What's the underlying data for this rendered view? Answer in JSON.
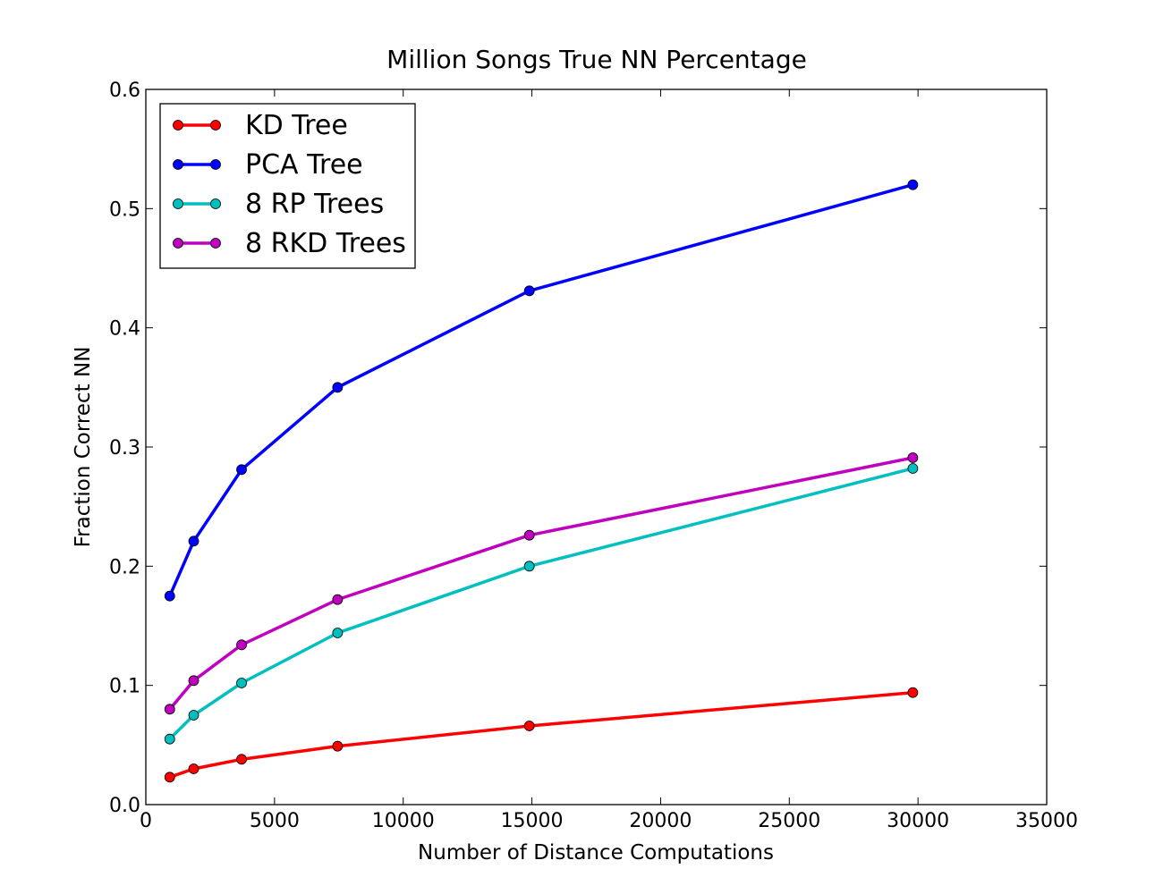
{
  "chart_data": {
    "type": "line",
    "title": "Million Songs True NN Percentage",
    "xlabel": "Number of Distance Computations",
    "ylabel": "Fraction Correct NN",
    "xlim": [
      0,
      35000
    ],
    "ylim": [
      0,
      0.6
    ],
    "xticks": [
      0,
      5000,
      10000,
      15000,
      20000,
      25000,
      30000,
      35000
    ],
    "xtick_labels": [
      "0",
      "5000",
      "10000",
      "15000",
      "20000",
      "25000",
      "30000",
      "35000"
    ],
    "yticks": [
      0.0,
      0.1,
      0.2,
      0.3,
      0.4,
      0.5,
      0.6
    ],
    "ytick_labels": [
      "0.0",
      "0.1",
      "0.2",
      "0.3",
      "0.4",
      "0.5",
      "0.6"
    ],
    "grid": false,
    "legend_position": "top-left",
    "x": [
      930,
      1860,
      3720,
      7450,
      14900,
      29800
    ],
    "series": [
      {
        "name": "KD Tree",
        "color": "#ff0000",
        "values": [
          0.023,
          0.03,
          0.038,
          0.049,
          0.066,
          0.094
        ]
      },
      {
        "name": "PCA Tree",
        "color": "#0000ff",
        "values": [
          0.175,
          0.221,
          0.281,
          0.35,
          0.431,
          0.52
        ]
      },
      {
        "name": "8 RP Trees",
        "color": "#00bfbf",
        "values": [
          0.055,
          0.075,
          0.102,
          0.144,
          0.2,
          0.282
        ]
      },
      {
        "name": "8 RKD Trees",
        "color": "#bf00bf",
        "values": [
          0.08,
          0.104,
          0.134,
          0.172,
          0.226,
          0.291
        ]
      }
    ]
  }
}
